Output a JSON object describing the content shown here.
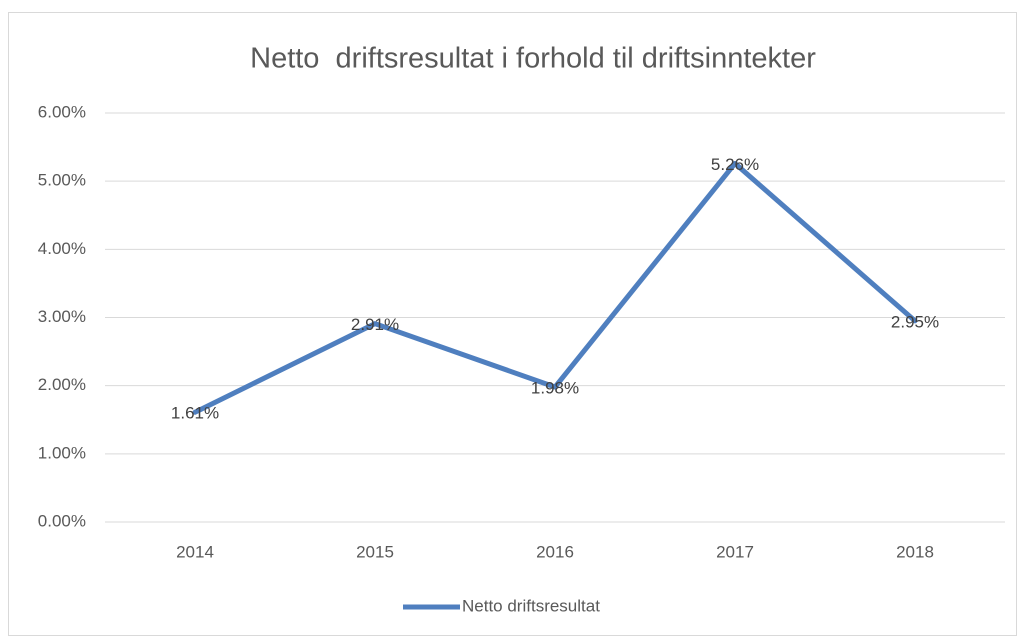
{
  "chart_data": {
    "type": "line",
    "title": "Netto  driftsresultat i forhold til driftsinntekter",
    "categories": [
      "2014",
      "2015",
      "2016",
      "2017",
      "2018"
    ],
    "series": [
      {
        "name": "Netto driftsresultat",
        "color": "#4f7fbf",
        "values": [
          1.61,
          2.91,
          1.98,
          5.26,
          2.95
        ],
        "value_labels": [
          "1.61%",
          "2.91%",
          "1.98%",
          "5.26%",
          "2.95%"
        ]
      }
    ],
    "ylim": [
      0,
      6
    ],
    "yticks": [
      {
        "value": 0,
        "label": "0.00%"
      },
      {
        "value": 1,
        "label": "1.00%"
      },
      {
        "value": 2,
        "label": "2.00%"
      },
      {
        "value": 3,
        "label": "3.00%"
      },
      {
        "value": 4,
        "label": "4.00%"
      },
      {
        "value": 5,
        "label": "5.00%"
      },
      {
        "value": 6,
        "label": "6.00%"
      }
    ],
    "grid": true,
    "legend": "bottom"
  }
}
